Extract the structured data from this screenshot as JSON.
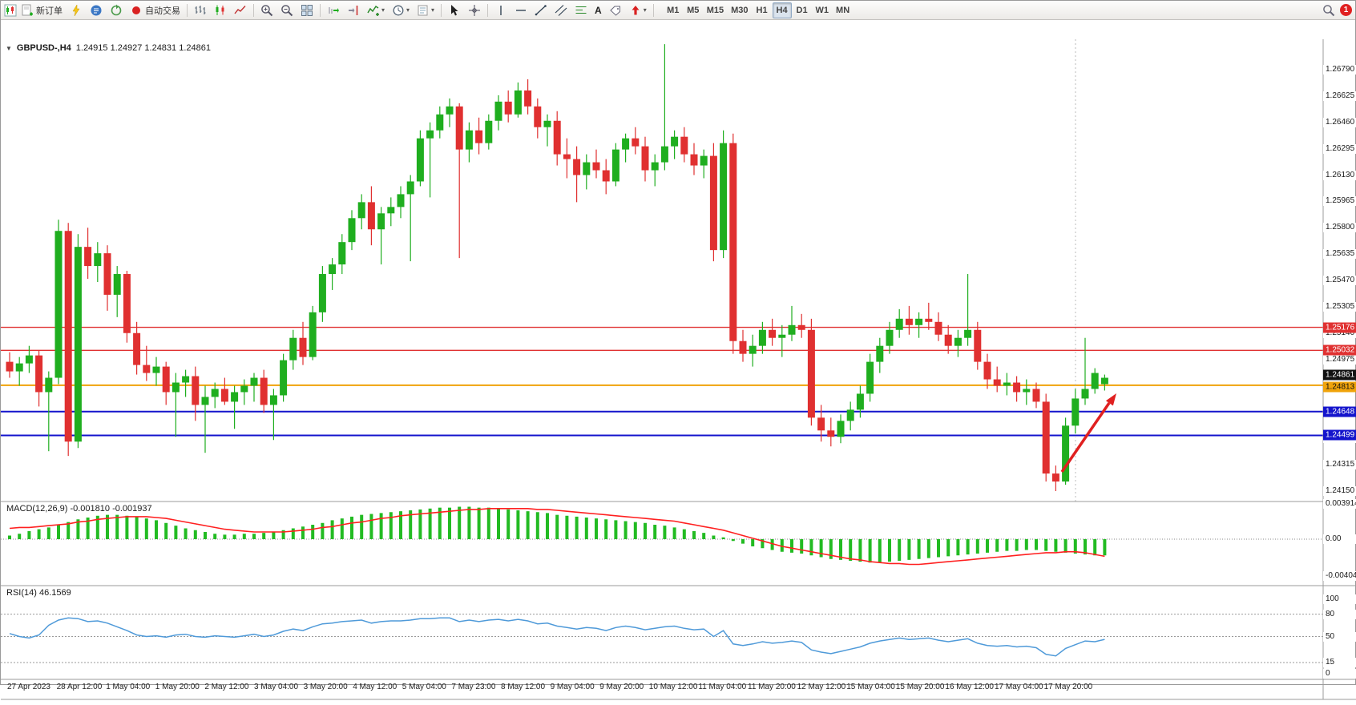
{
  "toolbar": {
    "new_order_label": "新订单",
    "auto_trading_label": "自动交易",
    "text_tool_label": "A",
    "timeframes": [
      "M1",
      "M5",
      "M15",
      "M30",
      "H1",
      "H4",
      "D1",
      "W1",
      "MN"
    ],
    "active_timeframe": "H4",
    "notification_count": "1"
  },
  "chart": {
    "symbol_label": "GBPUSD-,H4",
    "quote_line": "1.24915 1.24927 1.24831 1.24861",
    "level_lines": [
      {
        "label": "1.25176",
        "value": 1.25176,
        "badge": "red",
        "line": true
      },
      {
        "label": "1.25032",
        "value": 1.25032,
        "badge": "red",
        "line": true
      },
      {
        "label": "1.24861",
        "value": 1.24861,
        "badge": "black",
        "line": false
      },
      {
        "label": "1.24813",
        "value": 1.24813,
        "badge": "orange",
        "line": true
      },
      {
        "label": "1.24648",
        "value": 1.24648,
        "badge": "blue",
        "line": true
      },
      {
        "label": "1.24499",
        "value": 1.24499,
        "badge": "blue",
        "line": true
      }
    ],
    "colors": {
      "up": "#1fae1f",
      "down": "#e03030",
      "red_line": "#e03131",
      "orange_line": "#f0a30a",
      "blue_line": "#1414cc",
      "macd_hist": "#22bb22",
      "macd_signal": "#ff2020",
      "rsi_line": "#4f9ad9",
      "arrow": "#e02020"
    }
  },
  "chart_data": {
    "type": "candlestick",
    "title": "GBPUSD H4",
    "price_axis": {
      "max": 1.2679,
      "min": 1.2415,
      "ticks": [
        "1.26790",
        "1.26625",
        "1.26460",
        "1.26295",
        "1.26130",
        "1.25965",
        "1.25800",
        "1.25635",
        "1.25470",
        "1.25305",
        "1.25140",
        "1.24975",
        "1.24810",
        "1.24645",
        "1.24480",
        "1.24315",
        "1.24150"
      ]
    },
    "time_axis": [
      "27 Apr 2023",
      "28 Apr 12:00",
      "1 May 04:00",
      "1 May 20:00",
      "2 May 12:00",
      "3 May 04:00",
      "3 May 20:00",
      "4 May 12:00",
      "5 May 04:00",
      "7 May 23:00",
      "8 May 12:00",
      "9 May 04:00",
      "9 May 20:00",
      "10 May 12:00",
      "11 May 04:00",
      "11 May 20:00",
      "12 May 12:00",
      "15 May 04:00",
      "15 May 20:00",
      "16 May 12:00",
      "17 May 04:00",
      "17 May 20:00"
    ],
    "ohlc": [
      [
        1.2496,
        1.2502,
        1.2486,
        1.249
      ],
      [
        1.249,
        1.2499,
        1.2481,
        1.2495
      ],
      [
        1.2495,
        1.2506,
        1.2489,
        1.25
      ],
      [
        1.25,
        1.2503,
        1.2468,
        1.2477
      ],
      [
        1.2477,
        1.249,
        1.244,
        1.2486
      ],
      [
        1.2486,
        1.2585,
        1.2482,
        1.2578
      ],
      [
        1.2578,
        1.2583,
        1.2437,
        1.2446
      ],
      [
        1.2446,
        1.2576,
        1.2442,
        1.2568
      ],
      [
        1.2568,
        1.258,
        1.2548,
        1.2556
      ],
      [
        1.2556,
        1.2571,
        1.2546,
        1.2564
      ],
      [
        1.2564,
        1.2569,
        1.2528,
        1.2538
      ],
      [
        1.2538,
        1.2556,
        1.2524,
        1.2551
      ],
      [
        1.2551,
        1.2553,
        1.2508,
        1.2514
      ],
      [
        1.2514,
        1.2521,
        1.2488,
        1.2494
      ],
      [
        1.2494,
        1.2506,
        1.2484,
        1.2489
      ],
      [
        1.2489,
        1.2499,
        1.2481,
        1.2493
      ],
      [
        1.2493,
        1.2496,
        1.2469,
        1.2477
      ],
      [
        1.2477,
        1.2489,
        1.2449,
        1.2483
      ],
      [
        1.2483,
        1.2491,
        1.2474,
        1.2487
      ],
      [
        1.2487,
        1.2493,
        1.2459,
        1.2469
      ],
      [
        1.2469,
        1.2481,
        1.2439,
        1.2474
      ],
      [
        1.2474,
        1.2483,
        1.2467,
        1.2479
      ],
      [
        1.2479,
        1.2486,
        1.2469,
        1.2471
      ],
      [
        1.2471,
        1.2481,
        1.2454,
        1.2477
      ],
      [
        1.2477,
        1.2485,
        1.2469,
        1.2481
      ],
      [
        1.2481,
        1.2489,
        1.2471,
        1.2486
      ],
      [
        1.2486,
        1.2491,
        1.2464,
        1.2469
      ],
      [
        1.2469,
        1.2479,
        1.2447,
        1.2475
      ],
      [
        1.2475,
        1.2501,
        1.2471,
        1.2497
      ],
      [
        1.2497,
        1.2516,
        1.2491,
        1.2511
      ],
      [
        1.2511,
        1.2521,
        1.2494,
        1.2499
      ],
      [
        1.2499,
        1.2531,
        1.2497,
        1.2527
      ],
      [
        1.2527,
        1.2556,
        1.2521,
        1.2551
      ],
      [
        1.2551,
        1.2561,
        1.2541,
        1.2557
      ],
      [
        1.2557,
        1.2576,
        1.2551,
        1.2571
      ],
      [
        1.2571,
        1.2591,
        1.2566,
        1.2586
      ],
      [
        1.2586,
        1.2601,
        1.2579,
        1.2596
      ],
      [
        1.2596,
        1.2606,
        1.2569,
        1.2579
      ],
      [
        1.2579,
        1.2593,
        1.2557,
        1.2589
      ],
      [
        1.2589,
        1.2599,
        1.2581,
        1.2593
      ],
      [
        1.2593,
        1.2606,
        1.2586,
        1.2601
      ],
      [
        1.2601,
        1.2613,
        1.2559,
        1.2609
      ],
      [
        1.2609,
        1.2641,
        1.2606,
        1.2636
      ],
      [
        1.2636,
        1.2646,
        1.2599,
        1.2641
      ],
      [
        1.2641,
        1.2656,
        1.2636,
        1.2651
      ],
      [
        1.2651,
        1.2661,
        1.2643,
        1.2656
      ],
      [
        1.2656,
        1.2658,
        1.2561,
        1.2629
      ],
      [
        1.2629,
        1.2646,
        1.2621,
        1.2641
      ],
      [
        1.2641,
        1.2649,
        1.2626,
        1.2633
      ],
      [
        1.2633,
        1.2651,
        1.2629,
        1.2647
      ],
      [
        1.2647,
        1.2663,
        1.2641,
        1.2659
      ],
      [
        1.2659,
        1.2666,
        1.2646,
        1.2651
      ],
      [
        1.2651,
        1.2671,
        1.2649,
        1.2666
      ],
      [
        1.2666,
        1.2673,
        1.2651,
        1.2656
      ],
      [
        1.2656,
        1.2661,
        1.2636,
        1.2643
      ],
      [
        1.2643,
        1.2651,
        1.2631,
        1.2647
      ],
      [
        1.2647,
        1.2653,
        1.2619,
        1.2626
      ],
      [
        1.2626,
        1.2636,
        1.2611,
        1.2623
      ],
      [
        1.2623,
        1.2631,
        1.2596,
        1.2613
      ],
      [
        1.2613,
        1.2626,
        1.2604,
        1.2621
      ],
      [
        1.2621,
        1.2629,
        1.2611,
        1.2616
      ],
      [
        1.2616,
        1.2623,
        1.2601,
        1.2609
      ],
      [
        1.2609,
        1.2633,
        1.2606,
        1.2629
      ],
      [
        1.2629,
        1.2639,
        1.2621,
        1.2636
      ],
      [
        1.2636,
        1.2643,
        1.2626,
        1.2631
      ],
      [
        1.2631,
        1.2637,
        1.2609,
        1.2616
      ],
      [
        1.2616,
        1.2626,
        1.2606,
        1.2621
      ],
      [
        1.2621,
        1.2695,
        1.2616,
        1.2631
      ],
      [
        1.2631,
        1.2641,
        1.2623,
        1.2637
      ],
      [
        1.2637,
        1.2643,
        1.2621,
        1.2626
      ],
      [
        1.2626,
        1.2633,
        1.2613,
        1.2619
      ],
      [
        1.2619,
        1.2629,
        1.2611,
        1.2625
      ],
      [
        1.2625,
        1.2633,
        1.2559,
        1.2566
      ],
      [
        1.2566,
        1.2641,
        1.2561,
        1.2633
      ],
      [
        1.2633,
        1.2639,
        1.2501,
        1.2509
      ],
      [
        1.2509,
        1.2516,
        1.2496,
        1.2501
      ],
      [
        1.2501,
        1.2513,
        1.2493,
        1.2506
      ],
      [
        1.2506,
        1.2521,
        1.2501,
        1.2516
      ],
      [
        1.2516,
        1.2523,
        1.2506,
        1.2511
      ],
      [
        1.2511,
        1.2519,
        1.2499,
        1.2513
      ],
      [
        1.2513,
        1.2531,
        1.2509,
        1.2519
      ],
      [
        1.2519,
        1.2526,
        1.2511,
        1.2516
      ],
      [
        1.2516,
        1.2523,
        1.2456,
        1.2461
      ],
      [
        1.2461,
        1.2469,
        1.2446,
        1.2453
      ],
      [
        1.2453,
        1.2461,
        1.2443,
        1.2449
      ],
      [
        1.2449,
        1.2463,
        1.2445,
        1.2459
      ],
      [
        1.2459,
        1.2471,
        1.2453,
        1.2466
      ],
      [
        1.2466,
        1.2481,
        1.2461,
        1.2476
      ],
      [
        1.2476,
        1.2501,
        1.2471,
        1.2496
      ],
      [
        1.2496,
        1.2511,
        1.2489,
        1.2506
      ],
      [
        1.2506,
        1.2521,
        1.2501,
        1.2516
      ],
      [
        1.2516,
        1.2529,
        1.2511,
        1.2523
      ],
      [
        1.2523,
        1.2531,
        1.2513,
        1.2519
      ],
      [
        1.2519,
        1.2527,
        1.2511,
        1.2523
      ],
      [
        1.2523,
        1.2533,
        1.2516,
        1.2521
      ],
      [
        1.2521,
        1.2527,
        1.2509,
        1.2513
      ],
      [
        1.2513,
        1.2519,
        1.2501,
        1.2506
      ],
      [
        1.2506,
        1.2516,
        1.2499,
        1.2511
      ],
      [
        1.2511,
        1.2551,
        1.2506,
        1.2516
      ],
      [
        1.2516,
        1.2521,
        1.2491,
        1.2496
      ],
      [
        1.2496,
        1.2501,
        1.2479,
        1.2485
      ],
      [
        1.2485,
        1.2493,
        1.2477,
        1.2481
      ],
      [
        1.2481,
        1.2489,
        1.2475,
        1.2483
      ],
      [
        1.2483,
        1.2487,
        1.2471,
        1.2477
      ],
      [
        1.2477,
        1.2485,
        1.2469,
        1.2479
      ],
      [
        1.2479,
        1.2483,
        1.2467,
        1.2471
      ],
      [
        1.2471,
        1.2476,
        1.2421,
        1.2426
      ],
      [
        1.2426,
        1.2431,
        1.2415,
        1.2421
      ],
      [
        1.2421,
        1.2461,
        1.2419,
        1.2456
      ],
      [
        1.2456,
        1.2479,
        1.2451,
        1.2473
      ],
      [
        1.2473,
        1.2511,
        1.2469,
        1.2479
      ],
      [
        1.2479,
        1.2492,
        1.2476,
        1.2489
      ],
      [
        1.2482,
        1.2488,
        1.2478,
        1.2486
      ]
    ],
    "macd": {
      "label": "MACD(12,26,9) -0.001810 -0.001937",
      "axis_max": "0.003914",
      "axis_zero": "0.00",
      "axis_min": "-0.004049",
      "hist": [
        0.0004,
        0.0006,
        0.0009,
        0.0011,
        0.0013,
        0.0016,
        0.0019,
        0.0022,
        0.0024,
        0.0026,
        0.0027,
        0.0027,
        0.0026,
        0.0025,
        0.0023,
        0.0021,
        0.0018,
        0.0015,
        0.0012,
        0.001,
        0.0008,
        0.0006,
        0.0005,
        0.0005,
        0.0006,
        0.0006,
        0.0007,
        0.0008,
        0.001,
        0.0012,
        0.0014,
        0.0016,
        0.0018,
        0.0021,
        0.0023,
        0.0025,
        0.0027,
        0.0028,
        0.0029,
        0.003,
        0.0031,
        0.0032,
        0.0033,
        0.0034,
        0.0035,
        0.0035,
        0.0036,
        0.0036,
        0.0035,
        0.0035,
        0.0034,
        0.0033,
        0.0032,
        0.0031,
        0.003,
        0.0029,
        0.0027,
        0.0026,
        0.0025,
        0.0024,
        0.0023,
        0.0022,
        0.0021,
        0.002,
        0.0019,
        0.0018,
        0.0016,
        0.0015,
        0.0013,
        0.0011,
        0.0009,
        0.0007,
        0.0004,
        0.0002,
        -0.0002,
        -0.0005,
        -0.0008,
        -0.001,
        -0.0012,
        -0.0014,
        -0.0015,
        -0.0016,
        -0.0018,
        -0.002,
        -0.0022,
        -0.0023,
        -0.0024,
        -0.0025,
        -0.0026,
        -0.0026,
        -0.0025,
        -0.0024,
        -0.0023,
        -0.0022,
        -0.0021,
        -0.002,
        -0.0019,
        -0.0018,
        -0.0017,
        -0.0016,
        -0.0015,
        -0.0014,
        -0.0013,
        -0.0013,
        -0.0012,
        -0.0012,
        -0.0013,
        -0.0014,
        -0.0015,
        -0.0016,
        -0.0017,
        -0.0018,
        -0.0018
      ],
      "signal": [
        0.0012,
        0.0013,
        0.0013,
        0.0014,
        0.0015,
        0.0016,
        0.0017,
        0.0019,
        0.002,
        0.0022,
        0.0023,
        0.0024,
        0.0025,
        0.0025,
        0.0025,
        0.0024,
        0.0023,
        0.0021,
        0.0019,
        0.0017,
        0.0015,
        0.0013,
        0.0011,
        0.001,
        0.0009,
        0.0008,
        0.0008,
        0.0008,
        0.0008,
        0.0009,
        0.001,
        0.0011,
        0.0013,
        0.0014,
        0.0016,
        0.0018,
        0.0019,
        0.0021,
        0.0023,
        0.0024,
        0.0026,
        0.0027,
        0.0028,
        0.0029,
        0.003,
        0.0031,
        0.0032,
        0.0033,
        0.0033,
        0.0034,
        0.0034,
        0.0034,
        0.0034,
        0.0034,
        0.0033,
        0.0033,
        0.0032,
        0.0031,
        0.003,
        0.0029,
        0.0028,
        0.0027,
        0.0026,
        0.0025,
        0.0024,
        0.0023,
        0.0022,
        0.0021,
        0.002,
        0.0018,
        0.0016,
        0.0014,
        0.0012,
        0.001,
        0.0007,
        0.0004,
        0.0001,
        -0.0002,
        -0.0005,
        -0.0008,
        -0.001,
        -0.0012,
        -0.0014,
        -0.0016,
        -0.0018,
        -0.002,
        -0.0022,
        -0.0023,
        -0.0025,
        -0.0026,
        -0.0027,
        -0.0027,
        -0.0028,
        -0.0028,
        -0.0027,
        -0.0026,
        -0.0025,
        -0.0024,
        -0.0023,
        -0.0022,
        -0.0021,
        -0.002,
        -0.0019,
        -0.0018,
        -0.0017,
        -0.0016,
        -0.0015,
        -0.0015,
        -0.0014,
        -0.0014,
        -0.0015,
        -0.0017,
        -0.0019
      ]
    },
    "rsi": {
      "label": "RSI(14) 46.1569",
      "axis": [
        100,
        80,
        50,
        15,
        0
      ],
      "levels": [
        80,
        50,
        15
      ],
      "values": [
        54,
        50,
        48,
        52,
        65,
        72,
        75,
        74,
        70,
        71,
        68,
        63,
        58,
        52,
        50,
        51,
        49,
        52,
        53,
        50,
        49,
        51,
        50,
        49,
        51,
        53,
        50,
        52,
        57,
        60,
        58,
        63,
        67,
        68,
        70,
        71,
        72,
        68,
        70,
        71,
        71,
        72,
        74,
        74,
        75,
        75,
        70,
        72,
        70,
        72,
        73,
        71,
        73,
        71,
        67,
        68,
        64,
        62,
        60,
        62,
        61,
        58,
        62,
        64,
        62,
        59,
        61,
        63,
        64,
        61,
        59,
        60,
        50,
        58,
        40,
        38,
        40,
        43,
        41,
        42,
        44,
        42,
        32,
        29,
        27,
        30,
        33,
        36,
        41,
        44,
        46,
        48,
        46,
        47,
        48,
        45,
        43,
        45,
        47,
        41,
        38,
        37,
        38,
        36,
        37,
        35,
        26,
        24,
        34,
        39,
        44,
        43,
        46.16
      ]
    },
    "annotation_arrow": {
      "color": "#e02020"
    }
  }
}
